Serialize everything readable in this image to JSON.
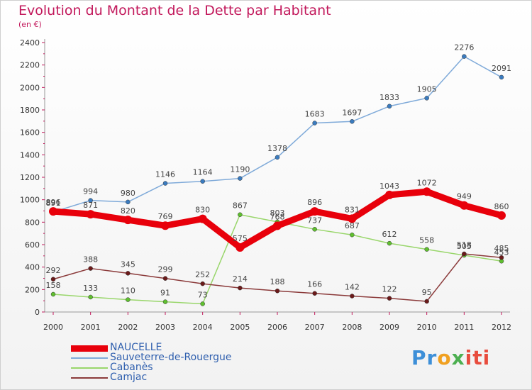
{
  "title": "Evolution du Montant de la Dette par Habitant",
  "subtitle": "(en €)",
  "logo": {
    "text": "Proxiti",
    "parts": [
      "Pr",
      "o",
      "x",
      "iti"
    ]
  },
  "chart_data": {
    "type": "line",
    "categories": [
      "2000",
      "2001",
      "2002",
      "2003",
      "2004",
      "2005",
      "2006",
      "2007",
      "2008",
      "2009",
      "2010",
      "2011",
      "2012"
    ],
    "ylim": [
      0,
      2400
    ],
    "yticks": [
      0,
      200,
      400,
      600,
      800,
      1000,
      1200,
      1400,
      1600,
      1800,
      2000,
      2200,
      2400
    ],
    "grid": false,
    "legend_position": "bottom-left",
    "series": [
      {
        "name": "NAUCELLE",
        "color": "#e8000b",
        "width": 9,
        "values": [
          896,
          871,
          820,
          769,
          830,
          575,
          768,
          896,
          831,
          1043,
          1072,
          949,
          860
        ]
      },
      {
        "name": "Sauveterre-de-Rouergue",
        "color": "#7faad9",
        "marker": "#3a7bbf",
        "width": 1.5,
        "values": [
          891,
          994,
          980,
          1146,
          1164,
          1190,
          1378,
          1683,
          1697,
          1833,
          1905,
          2276,
          2091
        ]
      },
      {
        "name": "Cabanès",
        "color": "#99d66b",
        "marker": "#5fbf2f",
        "width": 1.5,
        "values": [
          158,
          133,
          110,
          91,
          73,
          867,
          803,
          737,
          687,
          612,
          558,
          505,
          453
        ]
      },
      {
        "name": "Camjac",
        "color": "#8b3a3a",
        "marker": "#6b1a1a",
        "width": 1.5,
        "values": [
          292,
          388,
          345,
          299,
          252,
          214,
          188,
          166,
          142,
          122,
          95,
          518,
          485
        ]
      }
    ]
  }
}
